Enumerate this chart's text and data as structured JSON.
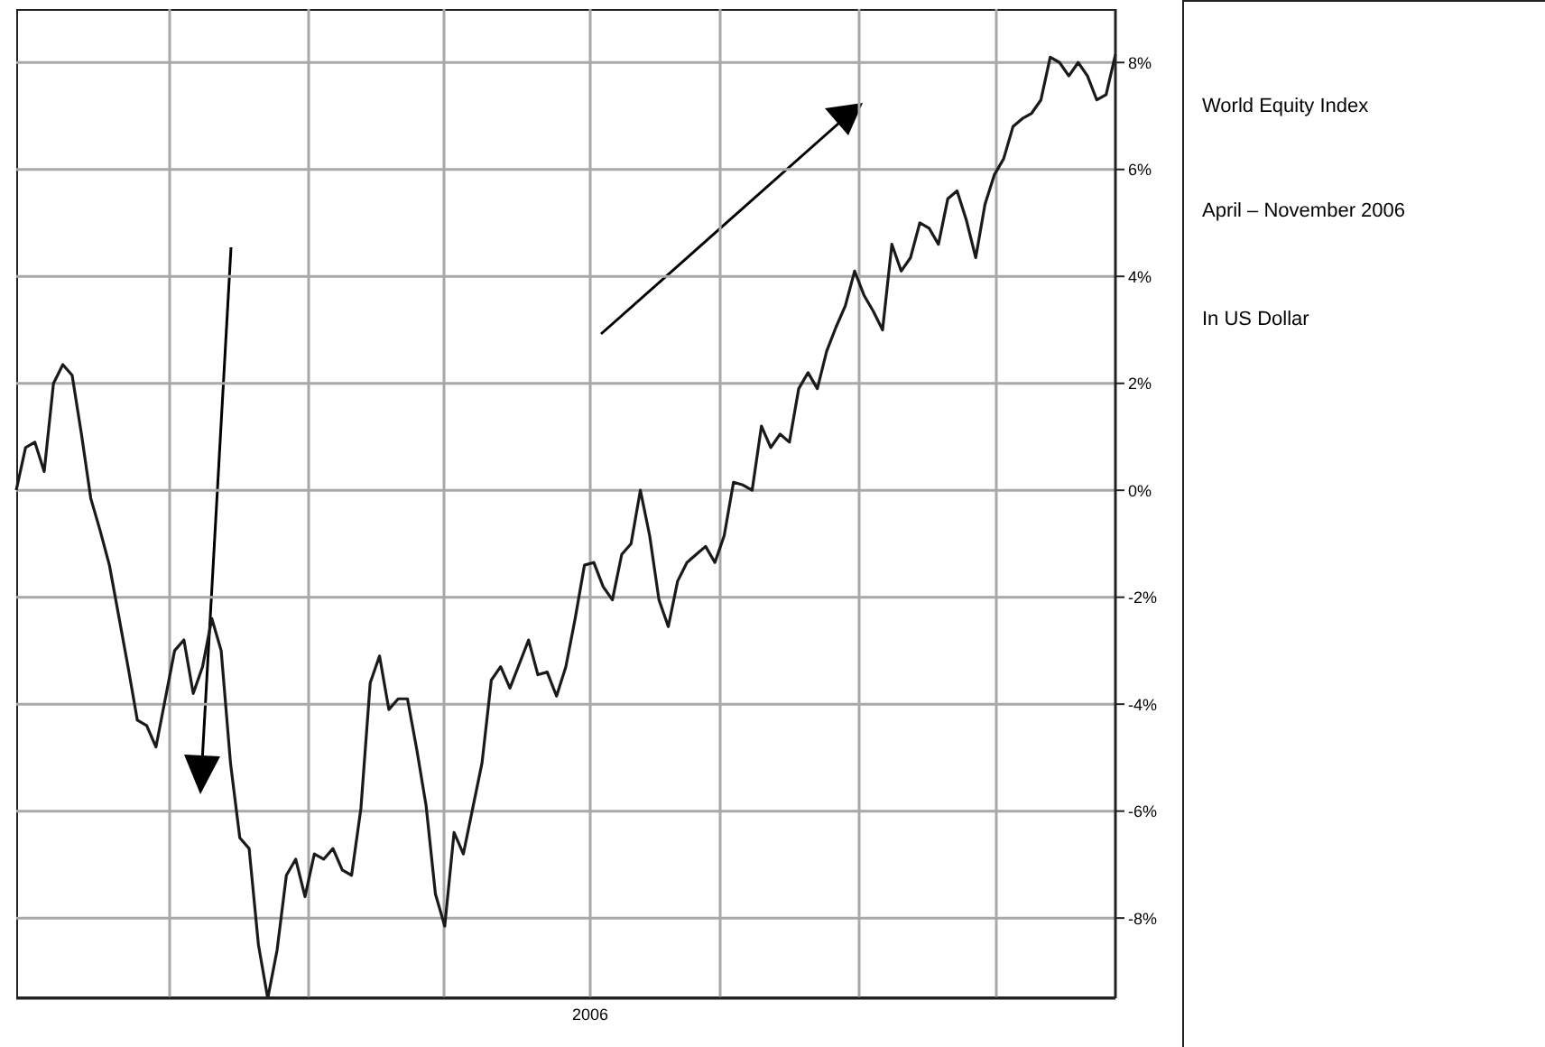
{
  "chart_data": {
    "type": "line",
    "title": "World Equity Index",
    "subtitle": "April – November 2006",
    "annotations": [
      "In US Dollar",
      "2006"
    ],
    "categories": [
      null,
      null,
      null,
      null,
      null,
      null,
      null,
      null,
      null,
      null,
      null,
      null,
      null,
      null,
      null,
      null,
      null,
      null,
      null,
      null,
      null,
      null,
      null,
      null,
      null,
      null,
      null,
      null,
      null,
      null,
      null,
      null,
      null,
      null,
      null,
      null,
      null,
      null,
      null,
      null,
      null,
      null,
      null,
      null,
      null,
      null,
      null,
      null,
      null,
      null,
      null,
      null,
      null,
      null,
      null,
      null,
      null,
      null,
      null,
      null,
      null,
      null,
      null,
      null,
      null,
      null,
      null,
      null,
      null,
      null,
      null,
      null,
      null,
      null,
      null,
      null,
      null,
      null,
      null,
      null,
      null,
      null,
      null,
      null,
      null,
      null,
      null,
      null,
      null,
      null,
      null,
      null,
      null,
      null,
      null,
      null,
      null,
      null,
      null,
      null,
      null,
      null,
      null,
      null,
      null,
      null,
      null,
      null,
      null,
      null,
      null,
      null,
      null,
      null,
      null,
      null,
      null,
      null,
      null
    ],
    "series": [
      {
        "color": "#1a1a1a",
        "values": [
          0.0,
          0.8,
          0.9,
          0.35,
          2.0,
          2.35,
          2.15,
          1.05,
          -0.15,
          -0.75,
          -1.4,
          -2.35,
          -3.3,
          -4.3,
          -4.4,
          -4.8,
          -3.9,
          -3.0,
          -2.8,
          -3.8,
          -3.3,
          -2.4,
          -3.0,
          -5.1,
          -6.5,
          -6.7,
          -8.5,
          -9.5,
          -8.6,
          -7.2,
          -6.9,
          -7.6,
          -6.8,
          -6.9,
          -6.7,
          -7.1,
          -7.2,
          -5.95,
          -3.6,
          -3.1,
          -4.1,
          -3.9,
          -3.9,
          -4.85,
          -5.9,
          -7.55,
          -8.15,
          -6.4,
          -6.8,
          -5.95,
          -5.1,
          -3.55,
          -3.3,
          -3.7,
          -3.25,
          -2.8,
          -3.45,
          -3.4,
          -3.85,
          -3.3,
          -2.4,
          -1.4,
          -1.35,
          -1.8,
          -2.05,
          -1.2,
          -1.0,
          0.0,
          -0.85,
          -2.05,
          -2.55,
          -1.7,
          -1.35,
          -1.2,
          -1.05,
          -1.35,
          -0.85,
          0.15,
          0.1,
          0.0,
          1.2,
          0.8,
          1.05,
          0.9,
          1.9,
          2.2,
          1.9,
          2.6,
          3.05,
          3.45,
          4.1,
          3.65,
          3.35,
          3.0,
          4.6,
          4.1,
          4.35,
          5.0,
          4.9,
          4.6,
          5.45,
          5.6,
          5.05,
          4.35,
          5.35,
          5.9,
          6.2,
          6.8,
          6.95,
          7.05,
          7.3,
          8.1,
          8.0,
          7.75,
          8.0,
          7.75,
          7.3,
          7.4,
          8.15
        ]
      }
    ],
    "ylim": [
      -9.5,
      9
    ],
    "yticks": [
      {
        "value": -8,
        "label": "-8%"
      },
      {
        "value": -6,
        "label": "-6%"
      },
      {
        "value": -4,
        "label": "-4%"
      },
      {
        "value": -2,
        "label": "-2%"
      },
      {
        "value": 0,
        "label": "0%"
      },
      {
        "value": 2,
        "label": "2%"
      },
      {
        "value": 4,
        "label": "4%"
      },
      {
        "value": 6,
        "label": "6%"
      },
      {
        "value": 8,
        "label": "8%"
      }
    ],
    "grid": true,
    "marker": "none",
    "line_style": "solid"
  }
}
